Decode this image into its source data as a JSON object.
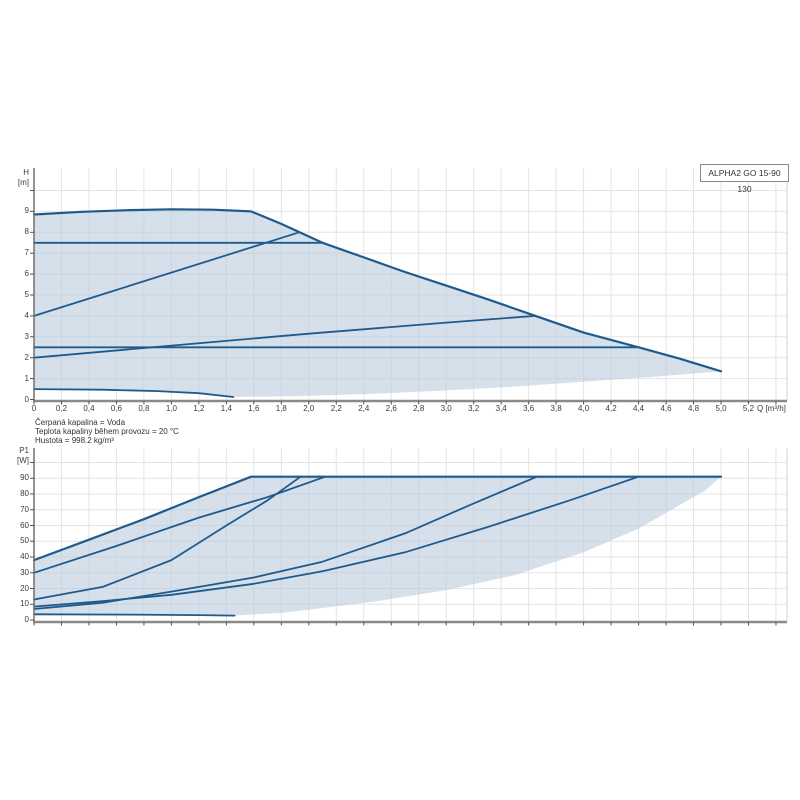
{
  "title_box": {
    "label": "ALPHA2 GO 15-90 130"
  },
  "info_lines": [
    "Čerpaná kapalina = Voda",
    "Teplota kapaliny během provozu = 20 °C",
    "Hustota = 998.2 kg/m³"
  ],
  "colors": {
    "envelope_fill": "#b9cbde",
    "curve_stroke": "#1f5a8d",
    "grid": "#e4e4e4",
    "axis": "#8a8a8a",
    "axis_left": "#707070",
    "frame": "#d2d2d2",
    "text": "#3c3c3c"
  },
  "chart_data": [
    {
      "type": "line",
      "title": "ALPHA2 GO 15-90 130",
      "xlabel": "Q [m³/h]",
      "ylabel": "H [m]",
      "ylabel_lines": [
        "H",
        "[m]"
      ],
      "xlim": [
        0,
        5.48
      ],
      "ylim": [
        0,
        11.1
      ],
      "grid": true,
      "x_tick_step": 0.2,
      "x_tick_labels": [
        "0",
        "0,2",
        "0,4",
        "0,6",
        "0,8",
        "1,0",
        "1,2",
        "1,4",
        "1,6",
        "1,8",
        "2,0",
        "2,2",
        "2,4",
        "2,6",
        "2,8",
        "3,0",
        "3,2",
        "3,4",
        "3,6",
        "3,8",
        "4,0",
        "4,2",
        "4,4",
        "4,6",
        "4,8",
        "5,0",
        "5,2"
      ],
      "y_tick_step": 1,
      "y_tick_labels": [
        "0",
        "1",
        "2",
        "3",
        "4",
        "5",
        "6",
        "7",
        "8",
        "9"
      ],
      "series": [
        {
          "name": "max-speed-curve",
          "width": 2.2,
          "points": [
            [
              0,
              8.85
            ],
            [
              0.35,
              8.98
            ],
            [
              0.7,
              9.06
            ],
            [
              1.0,
              9.1
            ],
            [
              1.3,
              9.08
            ],
            [
              1.58,
              9.0
            ],
            [
              1.8,
              8.4
            ],
            [
              2.1,
              7.5
            ],
            [
              2.4,
              6.8
            ],
            [
              2.7,
              6.1
            ],
            [
              3.0,
              5.45
            ],
            [
              3.3,
              4.8
            ],
            [
              3.65,
              4.0
            ],
            [
              4.0,
              3.2
            ],
            [
              4.4,
              2.5
            ],
            [
              4.7,
              1.95
            ],
            [
              5.0,
              1.35
            ]
          ]
        },
        {
          "name": "const-pressure-7.5m-curve",
          "width": 1.8,
          "points": [
            [
              0,
              7.5
            ],
            [
              2.1,
              7.5
            ]
          ]
        },
        {
          "name": "prop-pressure-high-curve",
          "width": 1.8,
          "points": [
            [
              0,
              4.0
            ],
            [
              1.93,
              8.0
            ]
          ]
        },
        {
          "name": "const-pressure-2.5m-curve",
          "width": 1.8,
          "points": [
            [
              0,
              2.5
            ],
            [
              4.4,
              2.5
            ]
          ]
        },
        {
          "name": "prop-pressure-low-curve",
          "width": 1.8,
          "points": [
            [
              0,
              2.0
            ],
            [
              1.0,
              2.58
            ],
            [
              2.0,
              3.15
            ],
            [
              3.0,
              3.68
            ],
            [
              3.65,
              4.0
            ]
          ]
        },
        {
          "name": "min-speed-curve",
          "width": 1.8,
          "points": [
            [
              0,
              0.5
            ],
            [
              0.5,
              0.47
            ],
            [
              0.9,
              0.4
            ],
            [
              1.2,
              0.3
            ],
            [
              1.45,
              0.12
            ]
          ]
        }
      ],
      "envelope": {
        "upper": [
          [
            0,
            8.85
          ],
          [
            0.35,
            8.98
          ],
          [
            0.7,
            9.06
          ],
          [
            1.0,
            9.1
          ],
          [
            1.3,
            9.08
          ],
          [
            1.58,
            9.0
          ],
          [
            1.8,
            8.4
          ],
          [
            2.1,
            7.5
          ],
          [
            2.4,
            6.8
          ],
          [
            2.7,
            6.1
          ],
          [
            3.0,
            5.45
          ],
          [
            3.3,
            4.8
          ],
          [
            3.65,
            4.0
          ],
          [
            4.0,
            3.2
          ],
          [
            4.4,
            2.5
          ],
          [
            4.7,
            1.95
          ],
          [
            5.0,
            1.35
          ]
        ],
        "lower": [
          [
            0,
            0.5
          ],
          [
            0.5,
            0.47
          ],
          [
            0.9,
            0.4
          ],
          [
            1.2,
            0.3
          ],
          [
            1.45,
            0.12
          ],
          [
            2.0,
            0.17
          ],
          [
            2.5,
            0.28
          ],
          [
            3.0,
            0.43
          ],
          [
            3.5,
            0.62
          ],
          [
            4.0,
            0.85
          ],
          [
            4.5,
            1.08
          ],
          [
            5.0,
            1.35
          ]
        ]
      }
    },
    {
      "type": "line",
      "title": "",
      "xlabel": "",
      "ylabel": "P1 [W]",
      "ylabel_lines": [
        "P1",
        "[W]"
      ],
      "xlim": [
        0,
        5.48
      ],
      "ylim": [
        0,
        109
      ],
      "grid": true,
      "x_tick_step": 0.2,
      "x_tick_labels": [],
      "y_tick_step": 10,
      "y_tick_labels": [
        "0",
        "10",
        "20",
        "30",
        "40",
        "50",
        "60",
        "70",
        "80",
        "90"
      ],
      "series": [
        {
          "name": "max-speed-power-curve",
          "width": 2.2,
          "points": [
            [
              0,
              38
            ],
            [
              0.4,
              51
            ],
            [
              0.8,
              64
            ],
            [
              1.2,
              78
            ],
            [
              1.58,
              91
            ],
            [
              5.0,
              91
            ]
          ]
        },
        {
          "name": "const-pressure-7.5m-power-curve",
          "width": 1.8,
          "points": [
            [
              0,
              30
            ],
            [
              0.6,
              47
            ],
            [
              1.2,
              65
            ],
            [
              1.7,
              78
            ],
            [
              2.12,
              91
            ]
          ]
        },
        {
          "name": "prop-pressure-high-power-curve",
          "width": 1.8,
          "points": [
            [
              0,
              13
            ],
            [
              0.5,
              21
            ],
            [
              1.0,
              38
            ],
            [
              1.4,
              60
            ],
            [
              1.7,
              76
            ],
            [
              1.94,
              91
            ]
          ]
        },
        {
          "name": "prop-pressure-low-power-curve",
          "width": 1.8,
          "points": [
            [
              0,
              7
            ],
            [
              0.5,
              11
            ],
            [
              1.0,
              18
            ],
            [
              1.6,
              27
            ],
            [
              2.1,
              37
            ],
            [
              2.7,
              55
            ],
            [
              3.2,
              74
            ],
            [
              3.66,
              91
            ]
          ]
        },
        {
          "name": "const-pressure-2.5m-power-curve",
          "width": 1.8,
          "points": [
            [
              0,
              8.5
            ],
            [
              0.5,
              12
            ],
            [
              1.0,
              16
            ],
            [
              1.6,
              23
            ],
            [
              2.1,
              31
            ],
            [
              2.7,
              43
            ],
            [
              3.3,
              59
            ],
            [
              3.9,
              76
            ],
            [
              4.4,
              91
            ]
          ]
        },
        {
          "name": "min-speed-power-curve",
          "width": 1.8,
          "points": [
            [
              0,
              3.6
            ],
            [
              0.7,
              3.4
            ],
            [
              1.2,
              3.1
            ],
            [
              1.46,
              2.8
            ]
          ]
        }
      ],
      "envelope": {
        "upper": [
          [
            0,
            38
          ],
          [
            0.4,
            51
          ],
          [
            0.8,
            64
          ],
          [
            1.2,
            78
          ],
          [
            1.58,
            91
          ],
          [
            5.0,
            91
          ]
        ],
        "lower": [
          [
            0,
            3.6
          ],
          [
            0.7,
            3.4
          ],
          [
            1.2,
            3.1
          ],
          [
            1.46,
            2.8
          ],
          [
            1.8,
            4.5
          ],
          [
            2.0,
            6.5
          ],
          [
            2.5,
            12
          ],
          [
            3.0,
            19
          ],
          [
            3.5,
            28.5
          ],
          [
            4.0,
            43
          ],
          [
            4.4,
            58
          ],
          [
            4.7,
            73
          ],
          [
            4.88,
            82
          ],
          [
            5.0,
            91
          ]
        ]
      }
    }
  ]
}
